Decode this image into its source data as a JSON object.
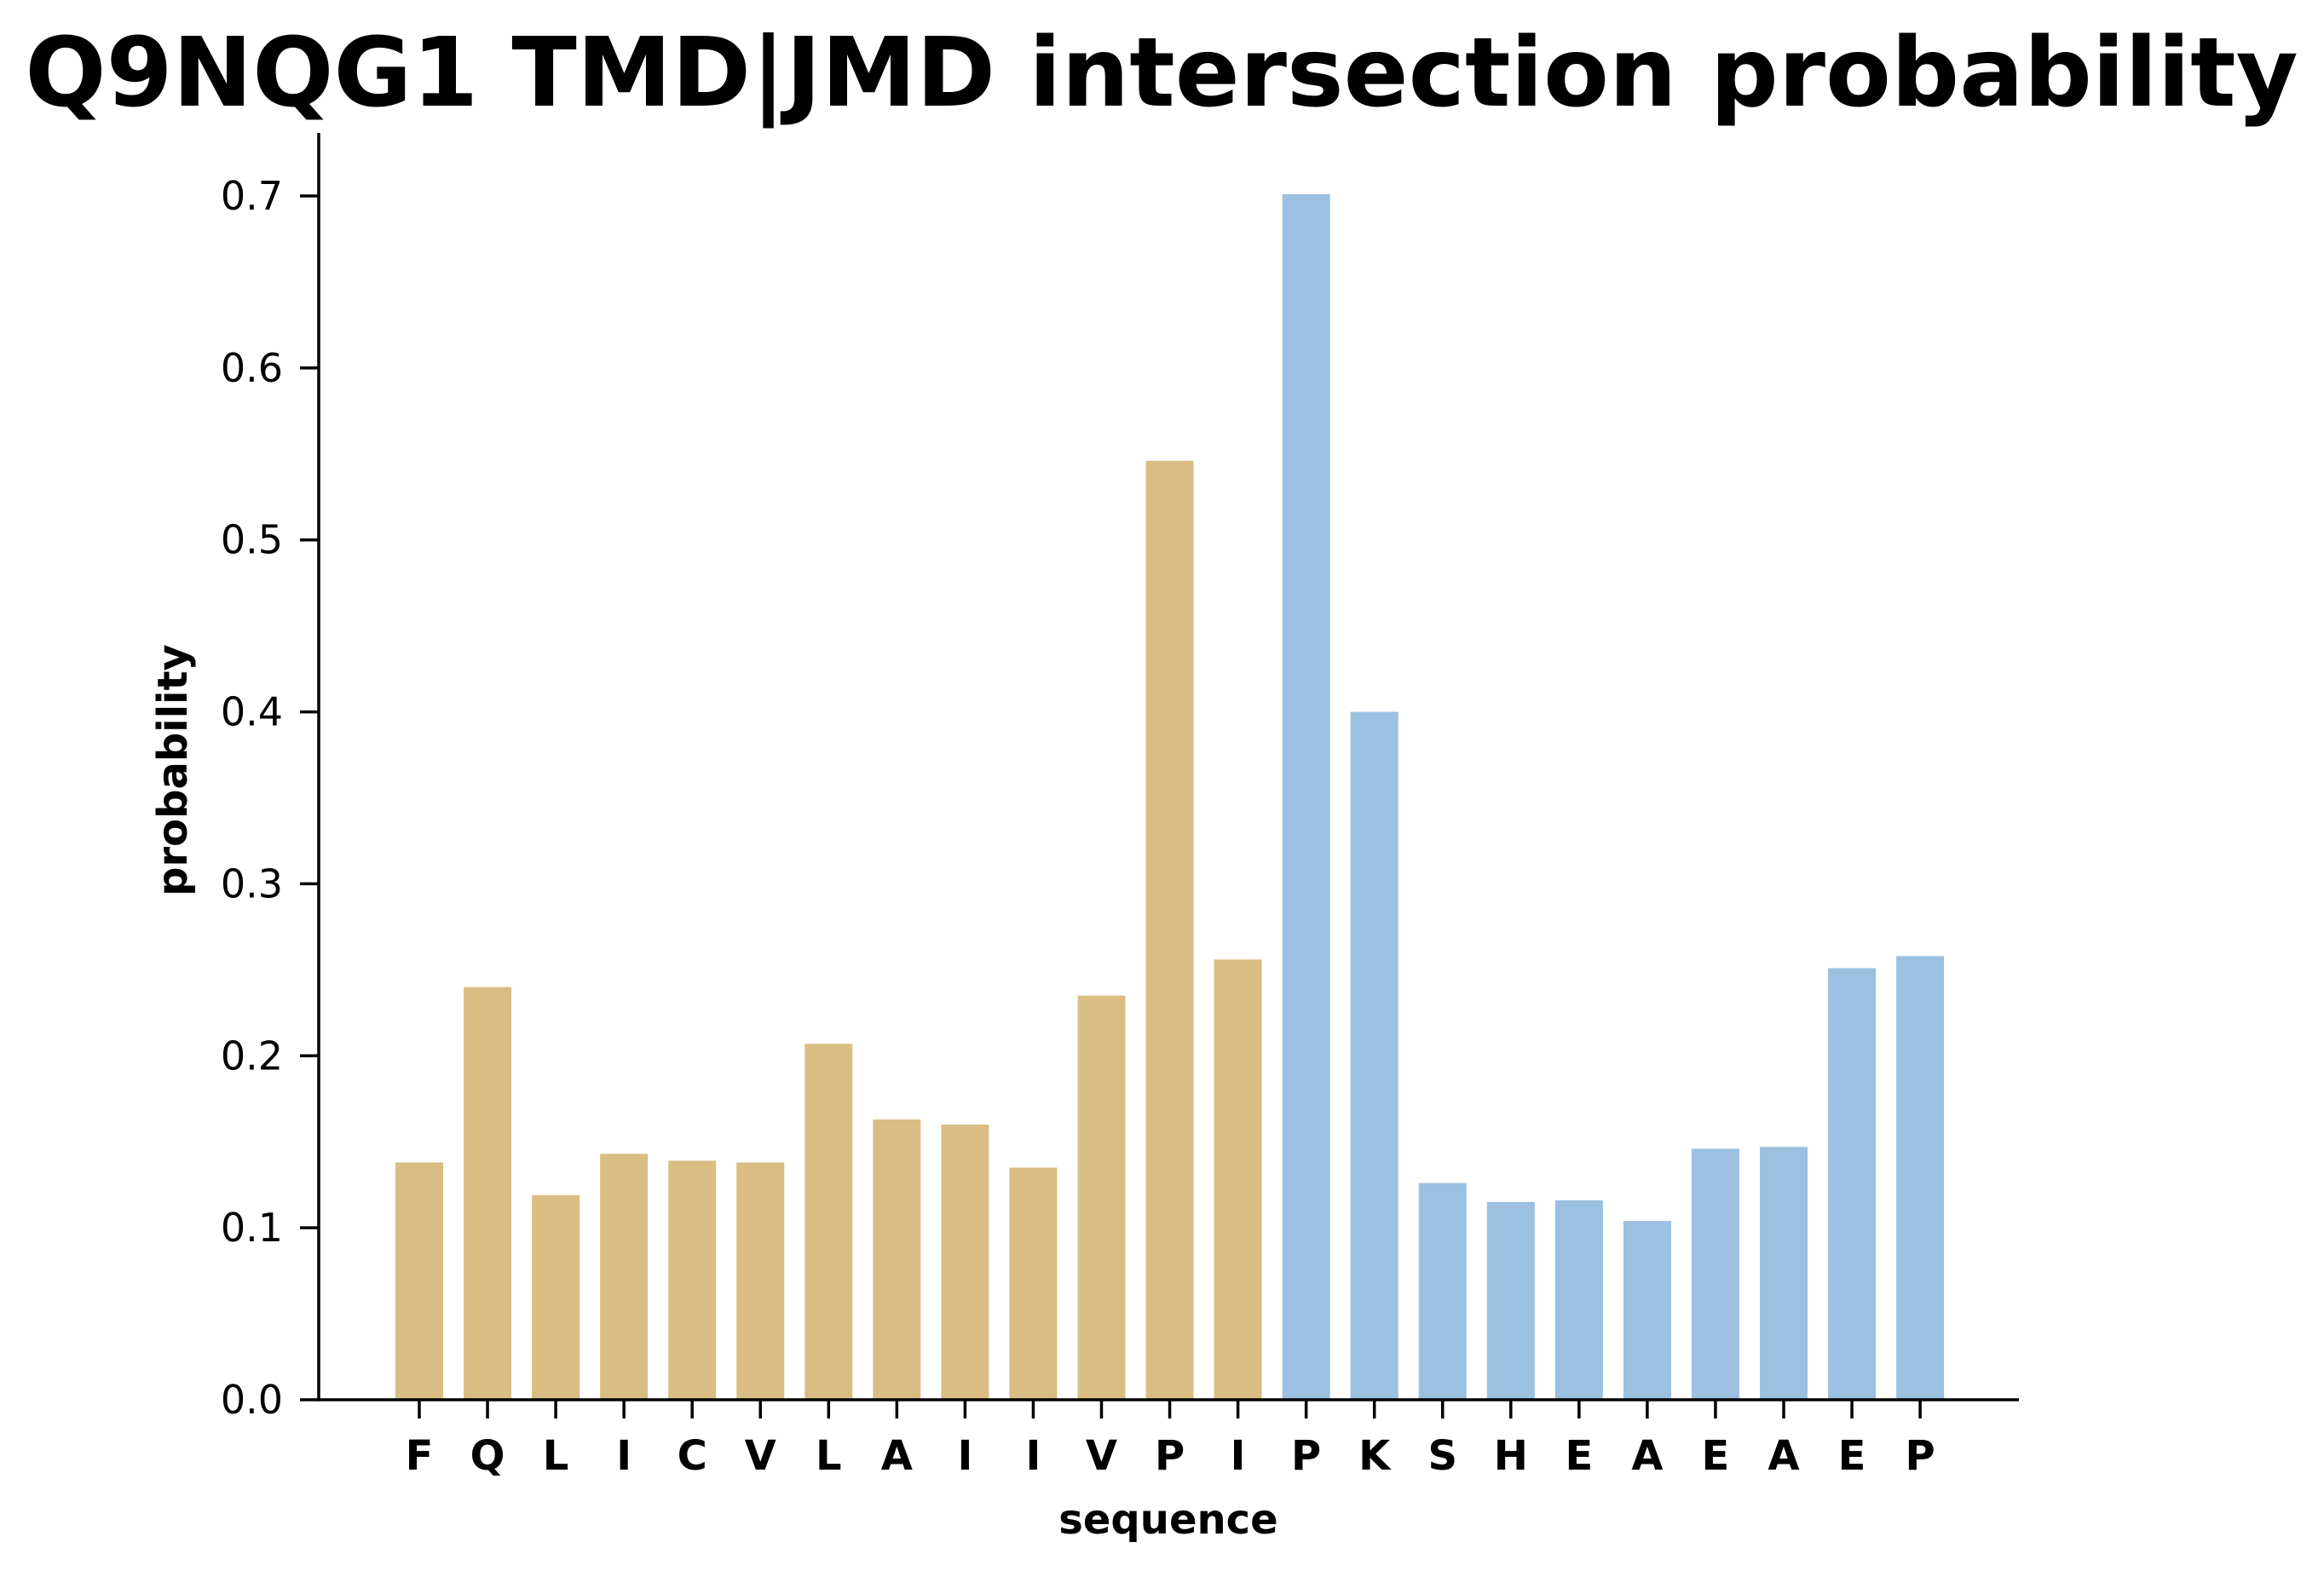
{
  "chart_data": {
    "type": "bar",
    "title": "Q9NQG1 TMD|JMD intersection probability",
    "xlabel": "sequence",
    "ylabel": "probability",
    "ylim": [
      0,
      0.735
    ],
    "yticks": [
      "0.0",
      "0.1",
      "0.2",
      "0.3",
      "0.4",
      "0.5",
      "0.6",
      "0.7"
    ],
    "grid": false,
    "categories": [
      "F",
      "Q",
      "L",
      "I",
      "C",
      "V",
      "L",
      "A",
      "I",
      "I",
      "V",
      "P",
      "I",
      "P",
      "K",
      "S",
      "H",
      "E",
      "A",
      "E",
      "A",
      "E",
      "P"
    ],
    "values": [
      0.138,
      0.24,
      0.119,
      0.143,
      0.139,
      0.138,
      0.207,
      0.163,
      0.16,
      0.135,
      0.235,
      0.546,
      0.256,
      0.701,
      0.4,
      0.126,
      0.115,
      0.116,
      0.104,
      0.146,
      0.147,
      0.251,
      0.258
    ],
    "bar_colors": [
      "#d9bd83",
      "#d9bd83",
      "#d9bd83",
      "#d9bd83",
      "#d9bd83",
      "#d9bd83",
      "#d9bd83",
      "#d9bd83",
      "#d9bd83",
      "#d9bd83",
      "#d9bd83",
      "#d9bd83",
      "#d9bd83",
      "#9bc0e0",
      "#9bc0e0",
      "#9bc0e0",
      "#9bc0e0",
      "#9bc0e0",
      "#9bc0e0",
      "#9bc0e0",
      "#9bc0e0",
      "#9bc0e0",
      "#9bc0e0"
    ],
    "colors": {
      "tmd": "#d9bd83",
      "jmd": "#9bc0e0",
      "axis": "#000000"
    }
  }
}
